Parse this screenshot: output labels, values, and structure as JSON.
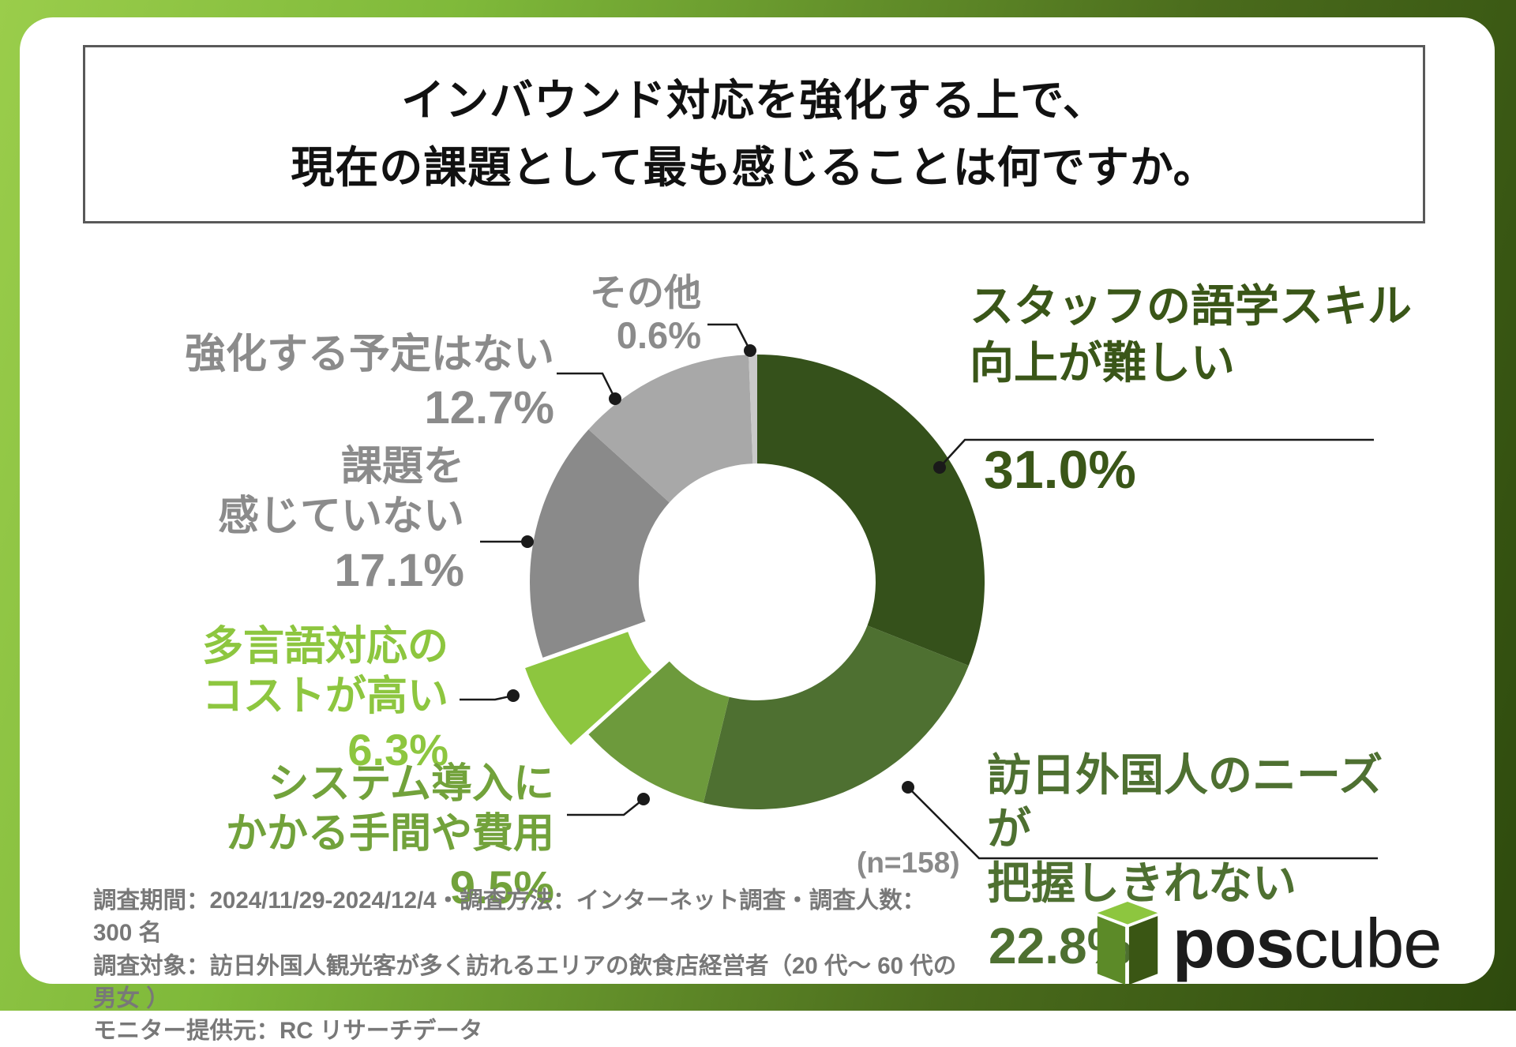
{
  "title": {
    "line1": "インバウンド対応を強化する上で、",
    "line2": "現在の課題として最も感じることは何ですか。"
  },
  "chart_data": {
    "type": "pie",
    "subtype": "donut",
    "start_angle_deg": 0,
    "direction": "clockwise",
    "n_label": "(n=158)",
    "hole_color": "#ffffff",
    "segments": [
      {
        "label": "スタッフの語学スキル向上が難しい",
        "label_lines": [
          "スタッフの語学スキル",
          "向上が難しい"
        ],
        "value": 31.0,
        "display": "31.0%",
        "color": "#35511B",
        "exploded": false
      },
      {
        "label": "訪日外国人のニーズが把握しきれない",
        "label_lines": [
          "訪日外国人のニーズが",
          "把握しきれない"
        ],
        "value": 22.8,
        "display": "22.8%",
        "color": "#4E7031",
        "exploded": false
      },
      {
        "label": "システム導入にかかる手間や費用",
        "label_lines": [
          "システム導入に",
          "かかる手間や費用"
        ],
        "value": 9.5,
        "display": "9.5%",
        "color": "#6D9A3C",
        "exploded": false
      },
      {
        "label": "多言語対応のコストが高い",
        "label_lines": [
          "多言語対応の",
          "コストが高い"
        ],
        "value": 6.3,
        "display": "6.3%",
        "color": "#8DC63F",
        "exploded": true
      },
      {
        "label": "課題を感じていない",
        "label_lines": [
          "課題を",
          "感じていない"
        ],
        "value": 17.1,
        "display": "17.1%",
        "color": "#8A8A8A",
        "exploded": false
      },
      {
        "label": "強化する予定はない",
        "label_lines": [
          "強化する予定はない"
        ],
        "value": 12.7,
        "display": "12.7%",
        "color": "#A8A8A8",
        "exploded": false
      },
      {
        "label": "その他",
        "label_lines": [
          "その他"
        ],
        "value": 0.6,
        "display": "0.6%",
        "color": "#C9C9C9",
        "exploded": false
      }
    ]
  },
  "label_text_colors": {
    "staff": "#3A5618",
    "houniti": "#4E7031",
    "system": "#72A23B",
    "tagengo": "#8DC63F",
    "gray": "#8B8B8B"
  },
  "footer": {
    "line1": "調査期間：2024/11/29-2024/12/4・調査方法：インターネット調査・調査人数：300 名",
    "line2": "調査対象：訪日外国人観光客が多く訪れるエリアの飲食店経営者（20 代〜 60 代の男女 ）",
    "line3": "モニター提供元：RC リサーチデータ"
  },
  "logo": {
    "bold_text": "pos",
    "light_text": "cube",
    "cube_top_color": "#8DC63F",
    "cube_left_color": "#5C8A28",
    "cube_right_color": "#3A5614"
  },
  "frame": {
    "gradient_light": "#9ACD4B",
    "gradient_dark": "#2E4A0D",
    "title_border": "#595959"
  }
}
